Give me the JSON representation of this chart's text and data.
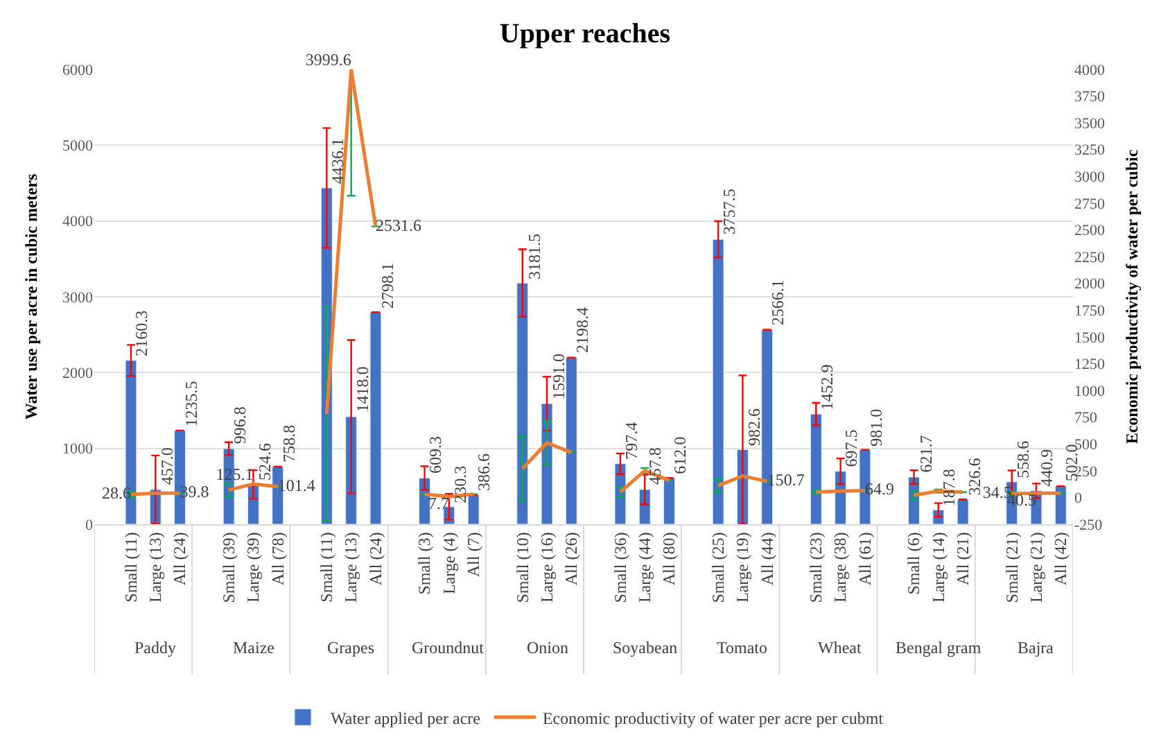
{
  "chart_data": {
    "type": "bar",
    "title": "Upper reaches",
    "ylabel": "Water use per acre in cubic meters",
    "y2label": "Economic productivity of water per cubic",
    "categories": [
      null,
      "Small (11)",
      "Large (13)",
      "All (24)",
      null,
      "Small (39)",
      "Large (39)",
      "All (78)",
      null,
      "Small (11)",
      "Large (13)",
      "All (24)",
      null,
      "Small (3)",
      "Large (4)",
      "All (7)",
      null,
      "Small (10)",
      "Large (16)",
      "All (26)",
      null,
      "Small (36)",
      "Large (44)",
      "All (80)",
      null,
      "Small (25)",
      "Large (19)",
      "All (44)",
      null,
      "Small (23)",
      "Large (38)",
      "All (61)",
      null,
      "Small (6)",
      "Large (14)",
      "All (21)",
      null,
      "Small (21)",
      "Large (21)",
      "All (42)"
    ],
    "annotations": [
      "Paddy",
      "Maize",
      "Grapes",
      "Groundnut",
      "Onion",
      "Soyabean",
      "Tomato",
      "Wheat",
      "Bengal gram",
      "Bajra"
    ],
    "series": [
      {
        "name": "Water applied per acre",
        "color": "#4472c4",
        "data_labels": true,
        "values": [
          null,
          2160.3,
          457.0,
          1235.5,
          null,
          996.8,
          524.6,
          758.8,
          null,
          4436.1,
          1418.0,
          2798.1,
          null,
          609.3,
          230.3,
          386.6,
          null,
          3181.5,
          1591.0,
          2198.4,
          null,
          797.4,
          457.8,
          612.0,
          null,
          3757.5,
          982.6,
          2566.1,
          null,
          1452.9,
          697.5,
          981.0,
          null,
          621.7,
          187.8,
          326.6,
          null,
          558.6,
          440.9,
          502.0
        ],
        "value_labels": [
          null,
          "2160.3",
          "457.0",
          "1235.5",
          null,
          "996.8",
          "524.6",
          "758.8",
          null,
          "4436.1",
          "1418.0",
          "2798.1",
          null,
          "609.3",
          "230.3",
          "386.6",
          null,
          "3181.5",
          "1591.0",
          "2198.4",
          null,
          "797.4",
          "457.8",
          "612.0",
          null,
          "3757.5",
          "982.6",
          "2566.1",
          null,
          "1452.9",
          "697.5",
          "981.0",
          null,
          "621.7",
          "187.8",
          "326.6",
          null,
          "558.6",
          "440.9",
          "502.0"
        ],
        "errors": [
          null,
          205,
          450,
          null,
          null,
          85,
          190,
          null,
          null,
          790,
          1010,
          null,
          null,
          155,
          170,
          null,
          null,
          445,
          355,
          null,
          null,
          137,
          195,
          null,
          null,
          240,
          980,
          null,
          null,
          148,
          170,
          null,
          null,
          90,
          90,
          null,
          null,
          150,
          95,
          null
        ]
      },
      {
        "name": "Economic productivity of water per acre per cubmt",
        "type": "line",
        "axis": "y2",
        "color": "#ed7d31",
        "marker": "none",
        "line_style": "solid",
        "values": [
          null,
          28.6,
          40,
          39.8,
          null,
          70,
          125.1,
          101.4,
          null,
          780,
          3999.6,
          2531.6,
          null,
          30,
          7.7,
          30,
          null,
          270,
          510,
          420,
          null,
          50,
          250,
          160,
          null,
          110,
          200,
          150.7,
          null,
          50,
          60,
          64.9,
          null,
          20,
          60,
          50,
          null,
          34.5,
          40.5,
          40
        ],
        "value_labels": [
          null,
          "28.6",
          null,
          "39.8",
          null,
          null,
          "125.1",
          "101.4",
          null,
          null,
          "3999.6",
          "2531.6",
          null,
          null,
          "7.7",
          null,
          null,
          null,
          null,
          null,
          null,
          null,
          null,
          null,
          null,
          null,
          null,
          "150.7",
          null,
          null,
          null,
          "64.9",
          null,
          null,
          null,
          null,
          null,
          "34.5",
          "40.5",
          null
        ],
        "errors": [
          null,
          30,
          null,
          null,
          null,
          60,
          null,
          null,
          null,
          1000,
          1180,
          null,
          null,
          null,
          null,
          null,
          null,
          300,
          200,
          null,
          null,
          45,
          25,
          null,
          null,
          60,
          null,
          null,
          null,
          15,
          null,
          null,
          null,
          40,
          15,
          null,
          null,
          15,
          null,
          null
        ]
      }
    ],
    "ylim": [
      0,
      6000
    ],
    "yticks": [
      0,
      1000,
      2000,
      3000,
      4000,
      5000,
      6000
    ],
    "y2lim": [
      -250,
      4000
    ],
    "y2ticks": [
      -250,
      0,
      250,
      500,
      750,
      1000,
      1250,
      1500,
      1750,
      2000,
      2250,
      2500,
      2750,
      3000,
      3250,
      3500,
      3750,
      4000
    ],
    "grid": "y",
    "legend": "bottom"
  }
}
